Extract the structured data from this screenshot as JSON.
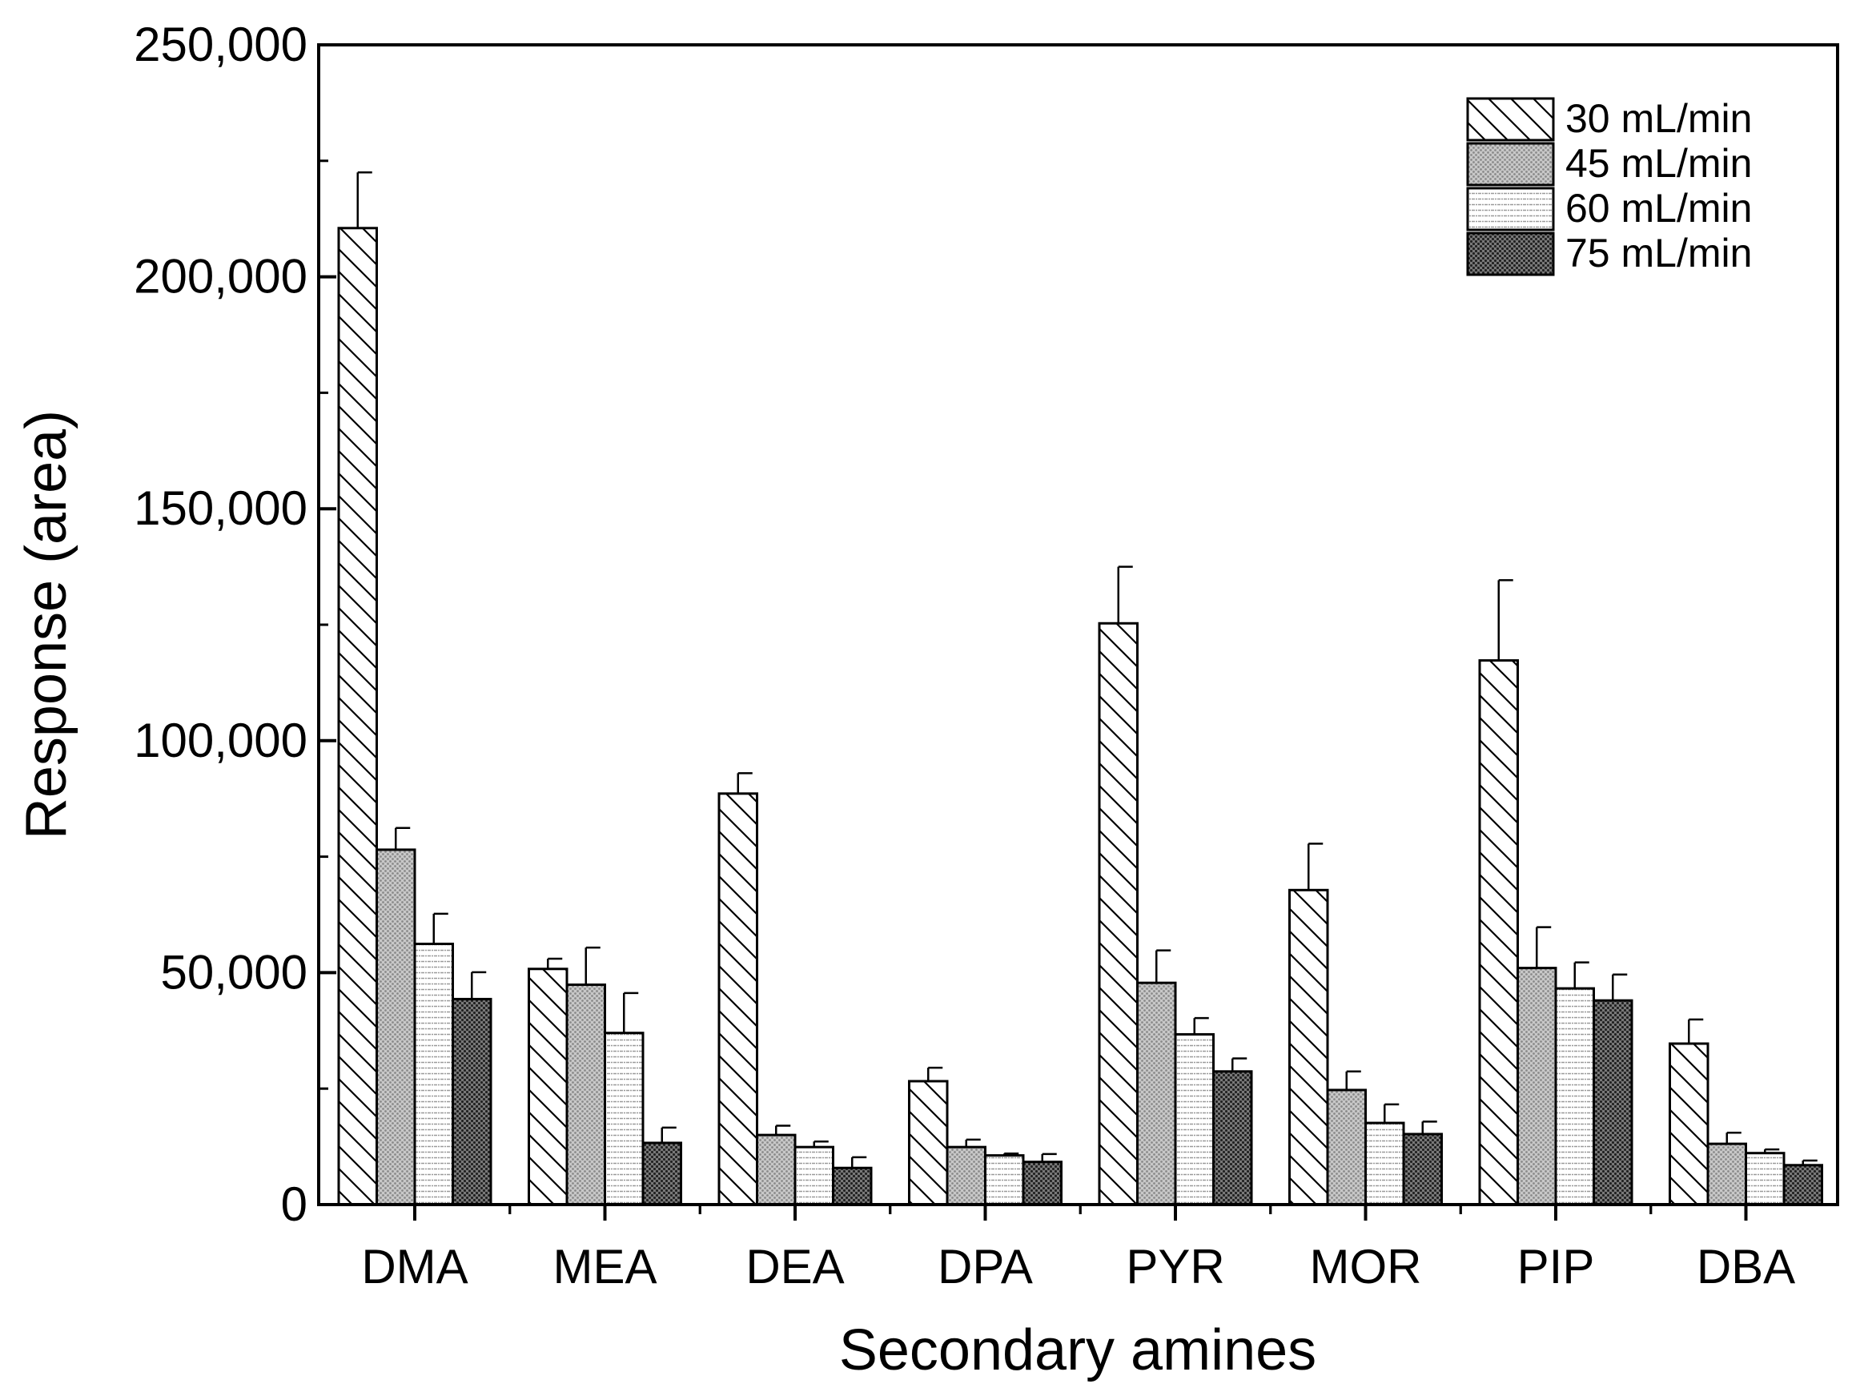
{
  "chart_data": {
    "type": "bar",
    "title": "",
    "xlabel": "Secondary amines",
    "ylabel": "Response (area)",
    "ylim": [
      0,
      250000
    ],
    "yticks": [
      0,
      50000,
      100000,
      150000,
      200000,
      250000
    ],
    "ytick_labels": [
      "0",
      "50,000",
      "100,000",
      "150,000",
      "200,000",
      "250,000"
    ],
    "categories": [
      "DMA",
      "MEA",
      "DEA",
      "DPA",
      "PYR",
      "MOR",
      "PIP",
      "DBA"
    ],
    "legend_position": "top-right",
    "series": [
      {
        "name": "30 mL/min",
        "pattern": "diagonal-hatch",
        "values": [
          210500,
          50800,
          88600,
          26600,
          125300,
          67800,
          117300,
          34700
        ],
        "errors": [
          12000,
          2200,
          4400,
          2900,
          12200,
          10000,
          17300,
          5200
        ]
      },
      {
        "name": "45 mL/min",
        "pattern": "gray-dots",
        "values": [
          76500,
          47400,
          15000,
          12400,
          47800,
          24700,
          51000,
          13100
        ],
        "errors": [
          4700,
          8000,
          2000,
          1600,
          7000,
          4000,
          8800,
          2400
        ]
      },
      {
        "name": "60 mL/min",
        "pattern": "horizontal-lines",
        "values": [
          56200,
          37000,
          12400,
          10600,
          36700,
          17600,
          46600,
          11100
        ],
        "errors": [
          6500,
          8600,
          1200,
          400,
          3500,
          4000,
          5600,
          800
        ]
      },
      {
        "name": "75 mL/min",
        "pattern": "dark-dots",
        "values": [
          44300,
          13300,
          7900,
          9200,
          28700,
          15200,
          44000,
          8500
        ],
        "errors": [
          5800,
          3300,
          2300,
          1700,
          2800,
          2700,
          5600,
          1000
        ]
      }
    ],
    "colors": {
      "axis": "#000000",
      "background": "#ffffff",
      "dot_light": "#a6a6a6",
      "dot_dark": "#333333"
    }
  }
}
